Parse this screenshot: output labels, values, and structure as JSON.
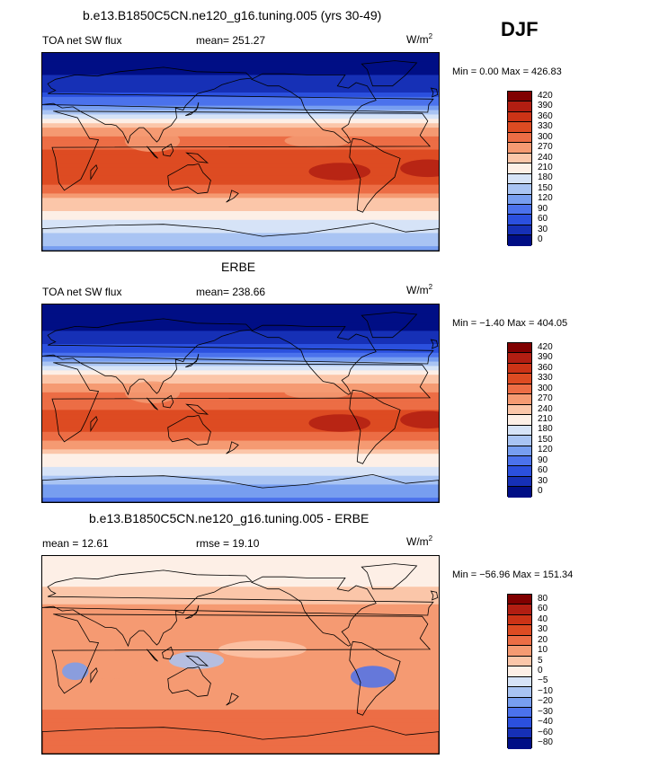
{
  "season": "DJF",
  "units_main": "W/m",
  "units_sup": "2",
  "panels": [
    {
      "title": "b.e13.B1850C5CN.ne120_g16.tuning.005 (yrs 30-49)",
      "left_label": "TOA net SW flux",
      "center_label": "mean=  251.27",
      "minmax": "Min =   0.00 Max = 426.83",
      "colorbar_labels": [
        "420",
        "390",
        "360",
        "330",
        "300",
        "270",
        "240",
        "210",
        "180",
        "150",
        "120",
        "90",
        "60",
        "30",
        "0"
      ]
    },
    {
      "title": "ERBE",
      "left_label": "TOA net SW flux",
      "center_label": "mean=  238.66",
      "minmax": "Min =  −1.40 Max = 404.05",
      "colorbar_labels": [
        "420",
        "390",
        "360",
        "330",
        "300",
        "270",
        "240",
        "210",
        "180",
        "150",
        "120",
        "90",
        "60",
        "30",
        "0"
      ]
    },
    {
      "title": "b.e13.B1850C5CN.ne120_g16.tuning.005 - ERBE",
      "left_label": "mean =   12.61",
      "center_label": "rmse =   19.10",
      "minmax": "Min = −56.96 Max = 151.34",
      "colorbar_labels": [
        "80",
        "60",
        "40",
        "30",
        "20",
        "10",
        "5",
        "0",
        "−5",
        "−10",
        "−20",
        "−30",
        "−40",
        "−60",
        "−80"
      ]
    }
  ],
  "colors": {
    "flux_scale": [
      "#800000",
      "#b21e12",
      "#cc3316",
      "#dd4b22",
      "#ec6d45",
      "#f59a72",
      "#fbc6a9",
      "#fdefe6",
      "#d6e3f7",
      "#a9c4f3",
      "#779ef0",
      "#4b72ec",
      "#2b50de",
      "#1630b6",
      "#000e85"
    ],
    "diff_scale": [
      "#800000",
      "#b21e12",
      "#cc3316",
      "#dd4b22",
      "#ec6d45",
      "#f59a72",
      "#fbc6a9",
      "#fdefe6",
      "#d6e3f7",
      "#a9c4f3",
      "#779ef0",
      "#4b72ec",
      "#2b50de",
      "#1630b6",
      "#000e85"
    ]
  },
  "chart_data": [
    {
      "type": "heatmap",
      "title": "b.e13.B1850C5CN.ne120_g16.tuning.005 (yrs 30-49)",
      "variable": "TOA net SW flux",
      "units": "W/m2",
      "mean": 251.27,
      "min": 0.0,
      "max": 426.83,
      "levels": [
        0,
        30,
        60,
        90,
        120,
        150,
        180,
        210,
        240,
        270,
        300,
        330,
        360,
        390,
        420
      ],
      "zonal_profile_approx": [
        {
          "lat": 90,
          "value": 5
        },
        {
          "lat": 60,
          "value": 40
        },
        {
          "lat": 45,
          "value": 110
        },
        {
          "lat": 30,
          "value": 220
        },
        {
          "lat": 15,
          "value": 300
        },
        {
          "lat": 0,
          "value": 330
        },
        {
          "lat": -15,
          "value": 360
        },
        {
          "lat": -30,
          "value": 330
        },
        {
          "lat": -45,
          "value": 260
        },
        {
          "lat": -60,
          "value": 220
        },
        {
          "lat": -75,
          "value": 170
        },
        {
          "lat": -90,
          "value": 140
        }
      ]
    },
    {
      "type": "heatmap",
      "title": "ERBE",
      "variable": "TOA net SW flux",
      "units": "W/m2",
      "mean": 238.66,
      "min": -1.4,
      "max": 404.05,
      "levels": [
        0,
        30,
        60,
        90,
        120,
        150,
        180,
        210,
        240,
        270,
        300,
        330,
        360,
        390,
        420
      ],
      "zonal_profile_approx": [
        {
          "lat": 90,
          "value": 5
        },
        {
          "lat": 60,
          "value": 35
        },
        {
          "lat": 45,
          "value": 100
        },
        {
          "lat": 30,
          "value": 210
        },
        {
          "lat": 15,
          "value": 290
        },
        {
          "lat": 0,
          "value": 320
        },
        {
          "lat": -15,
          "value": 350
        },
        {
          "lat": -30,
          "value": 320
        },
        {
          "lat": -45,
          "value": 245
        },
        {
          "lat": -60,
          "value": 200
        },
        {
          "lat": -75,
          "value": 150
        },
        {
          "lat": -90,
          "value": 110
        }
      ]
    },
    {
      "type": "heatmap",
      "title": "b.e13.B1850C5CN.ne120_g16.tuning.005 - ERBE",
      "units": "W/m2",
      "mean": 12.61,
      "rmse": 19.1,
      "min": -56.96,
      "max": 151.34,
      "levels": [
        -80,
        -60,
        -40,
        -30,
        -20,
        -10,
        -5,
        0,
        5,
        10,
        20,
        30,
        40,
        60,
        80
      ],
      "zonal_profile_approx": [
        {
          "lat": 90,
          "value": 0
        },
        {
          "lat": 60,
          "value": 5
        },
        {
          "lat": 45,
          "value": 10
        },
        {
          "lat": 30,
          "value": 12
        },
        {
          "lat": 15,
          "value": 15
        },
        {
          "lat": 0,
          "value": 10
        },
        {
          "lat": -15,
          "value": 15
        },
        {
          "lat": -30,
          "value": 12
        },
        {
          "lat": -45,
          "value": 18
        },
        {
          "lat": -60,
          "value": 25
        },
        {
          "lat": -75,
          "value": 20
        },
        {
          "lat": -90,
          "value": 25
        }
      ]
    }
  ]
}
